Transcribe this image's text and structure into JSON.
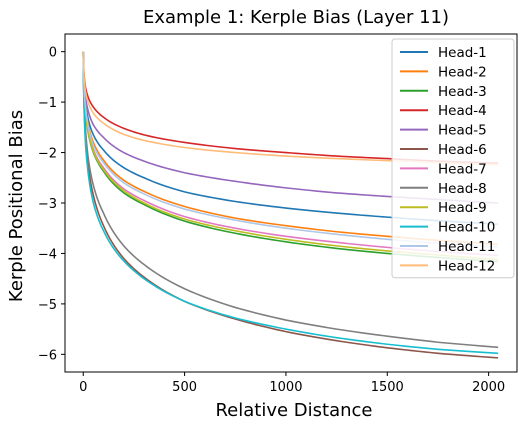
{
  "chart_data": {
    "type": "line",
    "title": "Example 1: Kerple Bias (Layer 11)",
    "xlabel": "Relative Distance",
    "ylabel": "Kerple Positional Bias",
    "xlim": [
      -90,
      2140
    ],
    "ylim": [
      -6.35,
      0.35
    ],
    "xticks": [
      0,
      500,
      1000,
      1500,
      2000
    ],
    "yticks": [
      0,
      -1,
      -2,
      -3,
      -4,
      -5,
      -6
    ],
    "xtick_labels": [
      "0",
      "500",
      "1000",
      "1500",
      "2000"
    ],
    "ytick_labels": [
      "0",
      "−1",
      "−2",
      "−3",
      "−4",
      "−5",
      "−6"
    ],
    "grid": false,
    "legend_position": "top-right",
    "x": [
      0,
      1,
      2,
      5,
      10,
      20,
      50,
      100,
      200,
      300,
      500,
      750,
      1000,
      1250,
      1500,
      1750,
      2047
    ],
    "series": [
      {
        "name": "Head-1",
        "color": "#1f77b4",
        "values": [
          0,
          -0.3,
          -0.45,
          -0.75,
          -1.0,
          -1.25,
          -1.65,
          -1.95,
          -2.3,
          -2.5,
          -2.78,
          -2.97,
          -3.1,
          -3.2,
          -3.28,
          -3.35,
          -3.42
        ]
      },
      {
        "name": "Head-2",
        "color": "#ff7f0e",
        "values": [
          0,
          -0.32,
          -0.47,
          -0.8,
          -1.05,
          -1.35,
          -1.8,
          -2.15,
          -2.55,
          -2.77,
          -3.07,
          -3.3,
          -3.45,
          -3.57,
          -3.66,
          -3.74,
          -3.82
        ]
      },
      {
        "name": "Head-3",
        "color": "#2ca02c",
        "values": [
          0,
          -0.34,
          -0.52,
          -0.85,
          -1.15,
          -1.5,
          -2.0,
          -2.37,
          -2.8,
          -3.03,
          -3.36,
          -3.6,
          -3.77,
          -3.9,
          -4.0,
          -4.08,
          -4.16
        ]
      },
      {
        "name": "Head-4",
        "color": "#d62728",
        "values": [
          0,
          -0.2,
          -0.3,
          -0.5,
          -0.68,
          -0.85,
          -1.1,
          -1.3,
          -1.52,
          -1.65,
          -1.8,
          -1.92,
          -2.0,
          -2.07,
          -2.12,
          -2.17,
          -2.21
        ]
      },
      {
        "name": "Head-5",
        "color": "#9467bd",
        "values": [
          0,
          -0.26,
          -0.4,
          -0.65,
          -0.88,
          -1.1,
          -1.45,
          -1.7,
          -2.0,
          -2.17,
          -2.4,
          -2.57,
          -2.7,
          -2.8,
          -2.87,
          -2.93,
          -3.0
        ]
      },
      {
        "name": "Head-6",
        "color": "#8c564b",
        "values": [
          0,
          -0.45,
          -0.7,
          -1.15,
          -1.6,
          -2.1,
          -2.85,
          -3.45,
          -4.1,
          -4.47,
          -4.95,
          -5.3,
          -5.55,
          -5.73,
          -5.87,
          -5.98,
          -6.07
        ]
      },
      {
        "name": "Head-7",
        "color": "#e377c2",
        "values": [
          0,
          -0.32,
          -0.5,
          -0.82,
          -1.1,
          -1.45,
          -1.95,
          -2.3,
          -2.72,
          -2.95,
          -3.27,
          -3.5,
          -3.66,
          -3.78,
          -3.88,
          -3.96,
          -4.04
        ]
      },
      {
        "name": "Head-8",
        "color": "#7f7f7f",
        "values": [
          0,
          -0.4,
          -0.62,
          -1.05,
          -1.45,
          -1.95,
          -2.65,
          -3.2,
          -3.85,
          -4.22,
          -4.7,
          -5.07,
          -5.32,
          -5.5,
          -5.64,
          -5.76,
          -5.86
        ]
      },
      {
        "name": "Head-9",
        "color": "#bcbd22",
        "values": [
          0,
          -0.33,
          -0.5,
          -0.84,
          -1.12,
          -1.48,
          -1.98,
          -2.34,
          -2.76,
          -3.0,
          -3.32,
          -3.55,
          -3.72,
          -3.85,
          -3.95,
          -4.03,
          -4.12
        ]
      },
      {
        "name": "Head-10",
        "color": "#17becf",
        "values": [
          0,
          -0.5,
          -0.75,
          -1.25,
          -1.75,
          -2.25,
          -3.0,
          -3.55,
          -4.15,
          -4.5,
          -4.95,
          -5.28,
          -5.5,
          -5.67,
          -5.8,
          -5.9,
          -5.98
        ]
      },
      {
        "name": "Head-11",
        "color": "#aec7e8",
        "values": [
          0,
          -0.3,
          -0.46,
          -0.78,
          -1.05,
          -1.38,
          -1.86,
          -2.2,
          -2.6,
          -2.82,
          -3.12,
          -3.34,
          -3.5,
          -3.62,
          -3.72,
          -3.8,
          -3.87
        ]
      },
      {
        "name": "Head-12",
        "color": "#ffbb78",
        "values": [
          0,
          -0.22,
          -0.34,
          -0.56,
          -0.76,
          -0.95,
          -1.22,
          -1.42,
          -1.64,
          -1.76,
          -1.9,
          -2.0,
          -2.07,
          -2.12,
          -2.16,
          -2.2,
          -2.24
        ]
      }
    ]
  }
}
